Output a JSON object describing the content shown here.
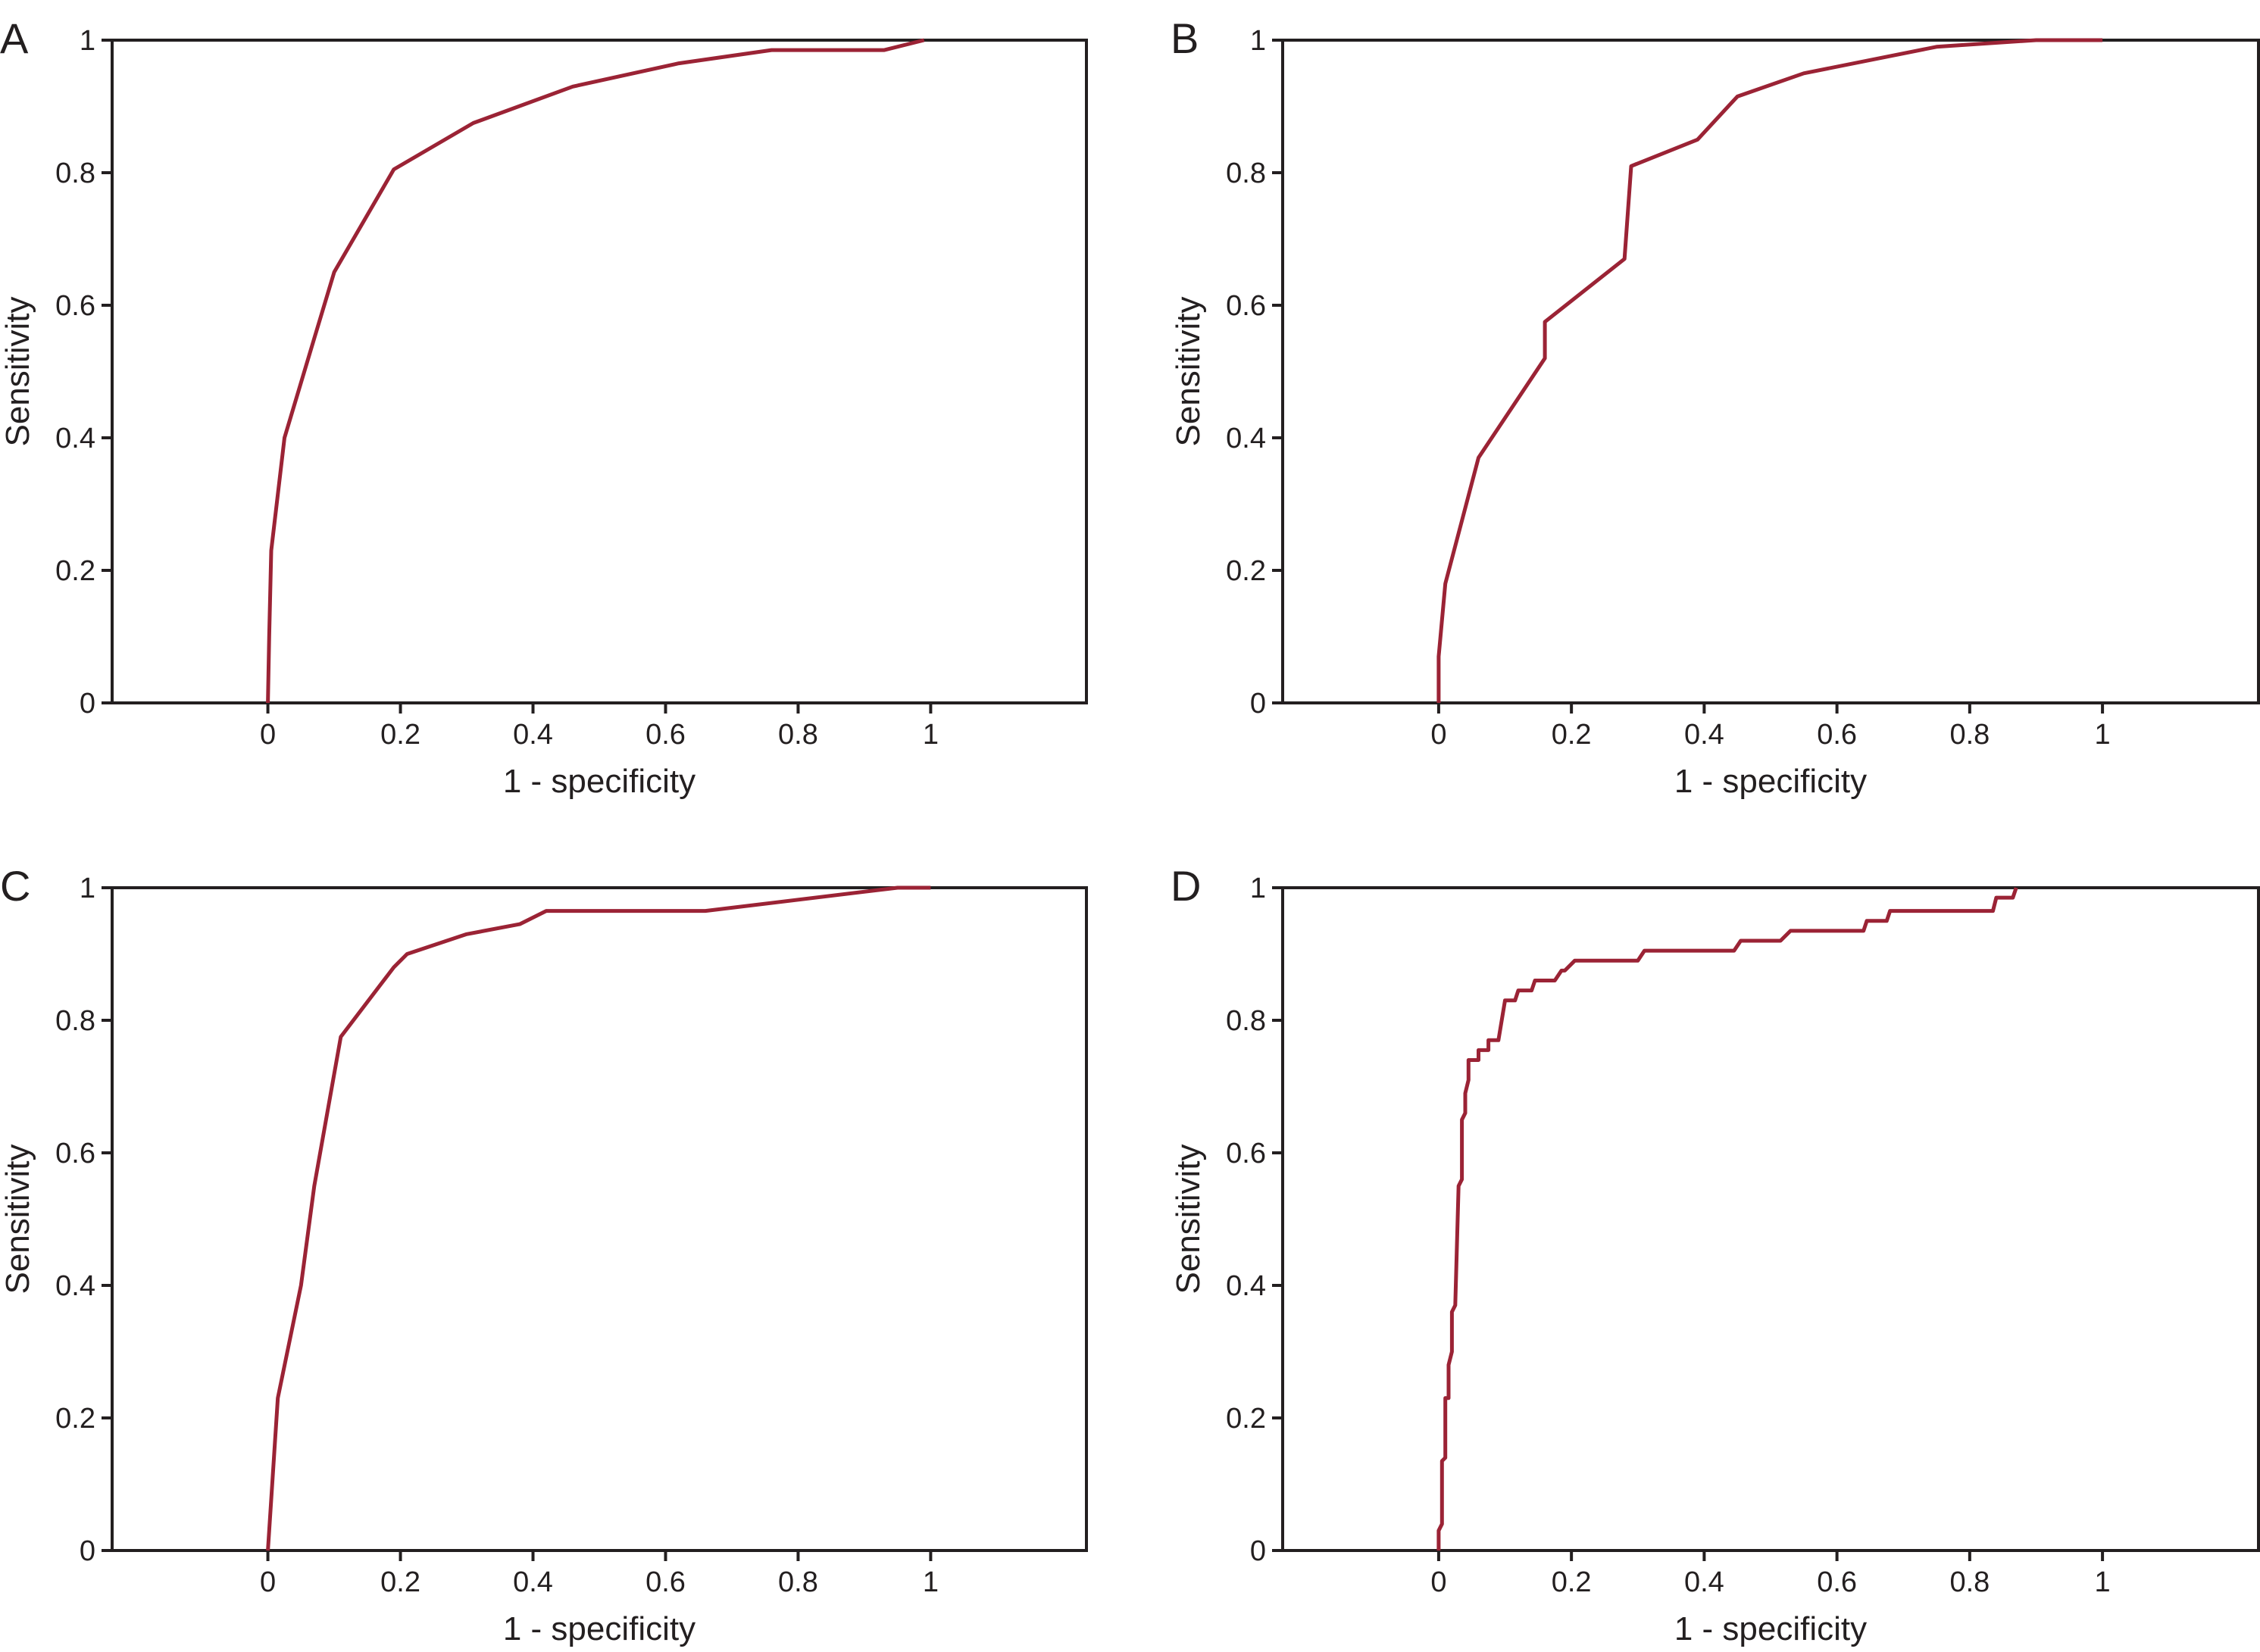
{
  "colors": {
    "curve": "#9b2335",
    "axis": "#231f20"
  },
  "chart_data": [
    {
      "type": "line",
      "panel_label": "A",
      "xlabel": "1 - specificity",
      "ylabel": "Sensitivity",
      "xlim": [
        -0.235,
        1.235
      ],
      "ylim": [
        0,
        1
      ],
      "xticks": [
        "0",
        "0.2",
        "0.4",
        "0.6",
        "0.8",
        "1"
      ],
      "yticks": [
        "0",
        "0.2",
        "0.4",
        "0.6",
        "0.8",
        "1"
      ],
      "grid": false,
      "x": [
        0,
        0.002,
        0.005,
        0.025,
        0.07,
        0.1,
        0.19,
        0.31,
        0.46,
        0.62,
        0.76,
        0.93,
        0.99
      ],
      "y": [
        0,
        0.1,
        0.23,
        0.4,
        0.55,
        0.65,
        0.805,
        0.875,
        0.93,
        0.965,
        0.985,
        0.985,
        1
      ]
    },
    {
      "type": "line",
      "panel_label": "B",
      "xlabel": "1 - specificity",
      "ylabel": "Sensitivity",
      "xlim": [
        -0.235,
        1.235
      ],
      "ylim": [
        0,
        1
      ],
      "xticks": [
        "0",
        "0.2",
        "0.4",
        "0.6",
        "0.8",
        "1"
      ],
      "yticks": [
        "0",
        "0.2",
        "0.4",
        "0.6",
        "0.8",
        "1"
      ],
      "grid": false,
      "x": [
        0,
        0,
        0.01,
        0.06,
        0.16,
        0.16,
        0.28,
        0.29,
        0.39,
        0.45,
        0.55,
        0.75,
        0.9,
        1
      ],
      "y": [
        0,
        0.07,
        0.18,
        0.37,
        0.52,
        0.575,
        0.67,
        0.81,
        0.85,
        0.915,
        0.95,
        0.99,
        1,
        1
      ]
    },
    {
      "type": "line",
      "panel_label": "C",
      "xlabel": "1 - specificity",
      "ylabel": "Sensitivity",
      "xlim": [
        -0.235,
        1.235
      ],
      "ylim": [
        0,
        1
      ],
      "xticks": [
        "0",
        "0.2",
        "0.4",
        "0.6",
        "0.8",
        "1"
      ],
      "yticks": [
        "0",
        "0.2",
        "0.4",
        "0.6",
        "0.8",
        "1"
      ],
      "grid": false,
      "x": [
        0,
        0.015,
        0.05,
        0.07,
        0.11,
        0.19,
        0.21,
        0.3,
        0.38,
        0.42,
        0.66,
        0.95,
        1
      ],
      "y": [
        0,
        0.23,
        0.4,
        0.55,
        0.775,
        0.88,
        0.9,
        0.93,
        0.945,
        0.965,
        0.965,
        1,
        1
      ]
    },
    {
      "type": "line",
      "panel_label": "D",
      "xlabel": "1 - specificity",
      "ylabel": "Sensitivity",
      "xlim": [
        -0.235,
        1.235
      ],
      "ylim": [
        0,
        1
      ],
      "xticks": [
        "0",
        "0.2",
        "0.4",
        "0.6",
        "0.8",
        "1"
      ],
      "yticks": [
        "0",
        "0.2",
        "0.4",
        "0.6",
        "0.8",
        "1"
      ],
      "grid": false,
      "x": [
        0,
        0,
        0.005,
        0.005,
        0.01,
        0.01,
        0.015,
        0.015,
        0.02,
        0.02,
        0.025,
        0.03,
        0.035,
        0.035,
        0.04,
        0.04,
        0.045,
        0.045,
        0.06,
        0.06,
        0.075,
        0.075,
        0.09,
        0.1,
        0.115,
        0.12,
        0.14,
        0.145,
        0.175,
        0.185,
        0.19,
        0.205,
        0.3,
        0.31,
        0.445,
        0.455,
        0.515,
        0.53,
        0.64,
        0.645,
        0.675,
        0.68,
        0.835,
        0.84,
        0.865,
        0.87
      ],
      "y": [
        0,
        0.03,
        0.04,
        0.135,
        0.14,
        0.23,
        0.23,
        0.28,
        0.3,
        0.36,
        0.37,
        0.55,
        0.56,
        0.65,
        0.66,
        0.69,
        0.71,
        0.74,
        0.74,
        0.755,
        0.755,
        0.77,
        0.77,
        0.83,
        0.83,
        0.845,
        0.845,
        0.86,
        0.86,
        0.875,
        0.875,
        0.89,
        0.89,
        0.905,
        0.905,
        0.92,
        0.92,
        0.935,
        0.935,
        0.95,
        0.95,
        0.965,
        0.965,
        0.985,
        0.985,
        1
      ]
    }
  ]
}
